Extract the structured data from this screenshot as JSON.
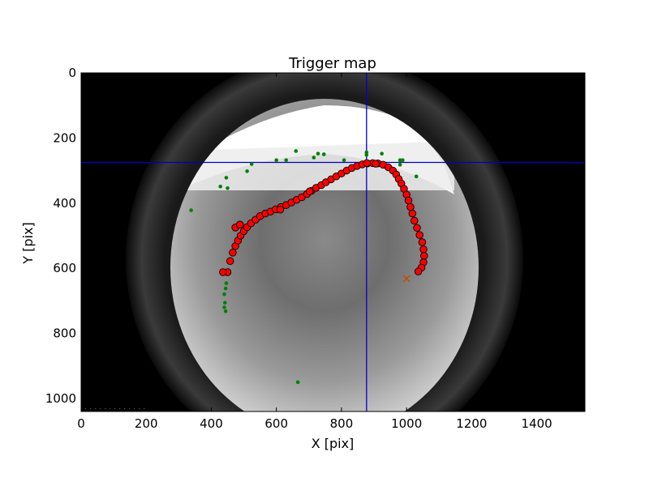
{
  "chart_data": {
    "type": "scatter",
    "title": "Trigger map",
    "xlabel": "X [pix]",
    "ylabel": "Y [pix]",
    "xlim": [
      0,
      1548
    ],
    "ylim": [
      1040,
      0
    ],
    "y_inverted": true,
    "xticks": [
      0,
      200,
      400,
      600,
      800,
      1000,
      1200,
      1400
    ],
    "yticks": [
      0,
      200,
      400,
      600,
      800,
      1000
    ],
    "background": "grayscale all-sky camera image",
    "crosshair": {
      "x": 877,
      "y": 275,
      "color": "#0000cc"
    },
    "series": [
      {
        "marker": "large-circle",
        "color": "#ff0000",
        "points": [
          [
            450,
            612
          ],
          [
            458,
            578
          ],
          [
            466,
            552
          ],
          [
            474,
            532
          ],
          [
            482,
            515
          ],
          [
            490,
            500
          ],
          [
            500,
            486
          ],
          [
            510,
            474
          ],
          [
            522,
            462
          ],
          [
            536,
            451
          ],
          [
            550,
            440
          ],
          [
            566,
            432
          ],
          [
            582,
            426
          ],
          [
            598,
            419
          ],
          [
            614,
            412
          ],
          [
            630,
            406
          ],
          [
            646,
            398
          ],
          [
            662,
            390
          ],
          [
            678,
            382
          ],
          [
            694,
            372
          ],
          [
            708,
            362
          ],
          [
            722,
            353
          ],
          [
            738,
            345
          ],
          [
            752,
            336
          ],
          [
            768,
            327
          ],
          [
            784,
            318
          ],
          [
            800,
            309
          ],
          [
            816,
            300
          ],
          [
            832,
            292
          ],
          [
            848,
            286
          ],
          [
            864,
            281
          ],
          [
            880,
            278
          ],
          [
            896,
            277
          ],
          [
            912,
            278
          ],
          [
            928,
            282
          ],
          [
            944,
            290
          ],
          [
            958,
            300
          ],
          [
            968,
            312
          ],
          [
            976,
            326
          ],
          [
            984,
            340
          ],
          [
            992,
            356
          ],
          [
            1000,
            374
          ],
          [
            1006,
            392
          ],
          [
            1012,
            412
          ],
          [
            1018,
            432
          ],
          [
            1024,
            454
          ],
          [
            1032,
            476
          ],
          [
            1040,
            498
          ],
          [
            1048,
            520
          ],
          [
            1052,
            542
          ],
          [
            1054,
            562
          ],
          [
            1052,
            582
          ],
          [
            1046,
            598
          ],
          [
            1036,
            610
          ],
          [
            474,
            475
          ],
          [
            488,
            466
          ],
          [
            612,
            420
          ],
          [
            702,
            364
          ],
          [
            878,
            277
          ],
          [
            905,
            279
          ],
          [
            436,
            612
          ]
        ]
      },
      {
        "marker": "small-dot",
        "color": "#008000",
        "points": [
          [
            338,
            422
          ],
          [
            428,
            349
          ],
          [
            446,
            322
          ],
          [
            450,
            354
          ],
          [
            510,
            302
          ],
          [
            524,
            280
          ],
          [
            600,
            268
          ],
          [
            630,
            268
          ],
          [
            660,
            240
          ],
          [
            715,
            260
          ],
          [
            728,
            248
          ],
          [
            746,
            250
          ],
          [
            808,
            268
          ],
          [
            877,
            244
          ],
          [
            877,
            252
          ],
          [
            924,
            248
          ],
          [
            980,
            268
          ],
          [
            988,
            268
          ],
          [
            980,
            282
          ],
          [
            1030,
            318
          ],
          [
            446,
            646
          ],
          [
            444,
            662
          ],
          [
            440,
            680
          ],
          [
            442,
            706
          ],
          [
            440,
            720
          ],
          [
            444,
            732
          ],
          [
            666,
            950
          ]
        ]
      },
      {
        "marker": "x",
        "color": "#c84a00",
        "points": [
          [
            1000,
            632
          ]
        ]
      }
    ]
  }
}
